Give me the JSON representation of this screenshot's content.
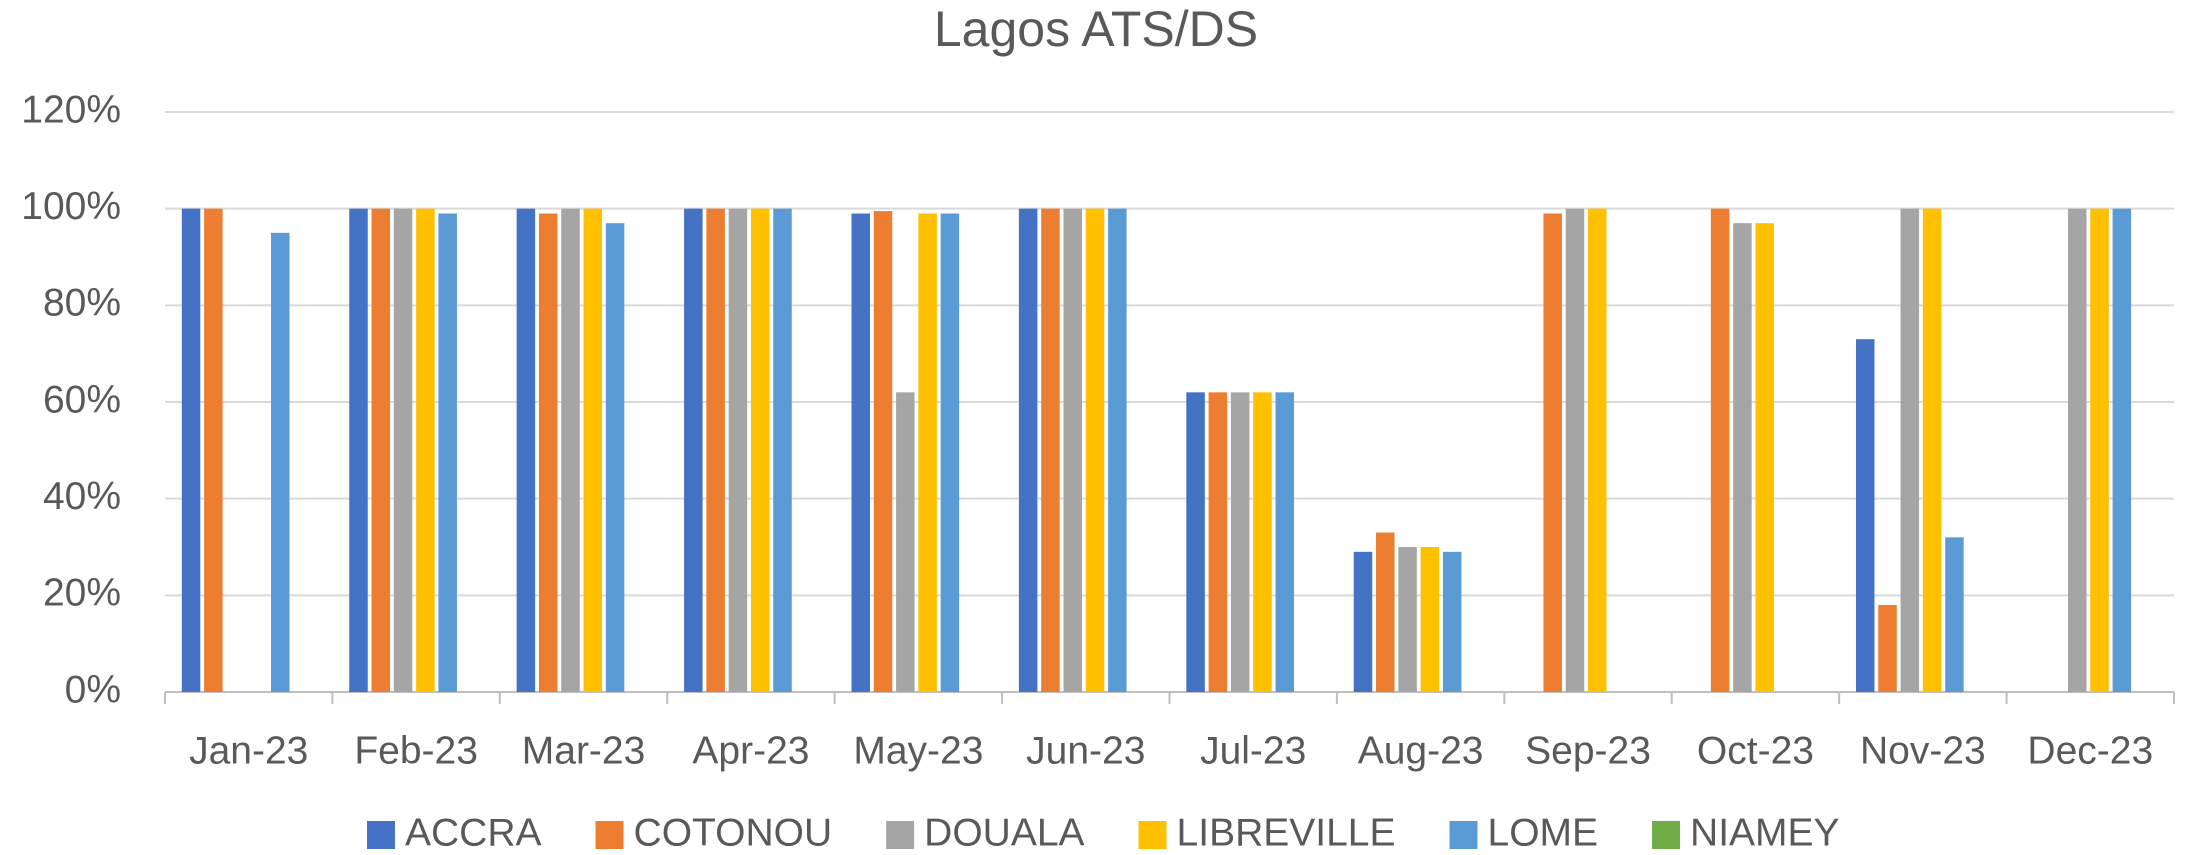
{
  "chart_data": {
    "type": "bar",
    "title": "Lagos ATS/DS",
    "categories": [
      "Jan-23",
      "Feb-23",
      "Mar-23",
      "Apr-23",
      "May-23",
      "Jun-23",
      "Jul-23",
      "Aug-23",
      "Sep-23",
      "Oct-23",
      "Nov-23",
      "Dec-23"
    ],
    "series": [
      {
        "name": "ACCRA",
        "color": "#4472c4",
        "values": [
          100,
          100,
          100,
          100,
          99,
          100,
          62,
          29,
          null,
          null,
          73,
          null
        ]
      },
      {
        "name": "COTONOU",
        "color": "#ed7d31",
        "values": [
          100,
          100,
          99,
          100,
          99.5,
          100,
          62,
          33,
          99,
          100,
          18,
          null
        ]
      },
      {
        "name": "DOUALA",
        "color": "#a5a5a5",
        "values": [
          null,
          100,
          100,
          100,
          62,
          100,
          62,
          30,
          100,
          97,
          100,
          100
        ]
      },
      {
        "name": "LIBREVILLE",
        "color": "#ffc000",
        "values": [
          null,
          100,
          100,
          100,
          99,
          100,
          62,
          30,
          100,
          97,
          100,
          100
        ]
      },
      {
        "name": "LOME",
        "color": "#5b9bd5",
        "values": [
          95,
          99,
          97,
          100,
          99,
          100,
          62,
          29,
          null,
          null,
          32,
          100
        ]
      },
      {
        "name": "NIAMEY",
        "color": "#70ad47",
        "values": [
          null,
          null,
          null,
          null,
          null,
          null,
          null,
          null,
          null,
          null,
          null,
          null
        ]
      }
    ],
    "ylim": [
      0,
      120
    ],
    "yticks": [
      {
        "value": 0,
        "label": "0%"
      },
      {
        "value": 20,
        "label": "20%"
      },
      {
        "value": 40,
        "label": "40%"
      },
      {
        "value": 60,
        "label": "60%"
      },
      {
        "value": 80,
        "label": "80%"
      },
      {
        "value": 100,
        "label": "100%"
      },
      {
        "value": 120,
        "label": "120%"
      }
    ],
    "grid": true,
    "legend": "bottom"
  }
}
